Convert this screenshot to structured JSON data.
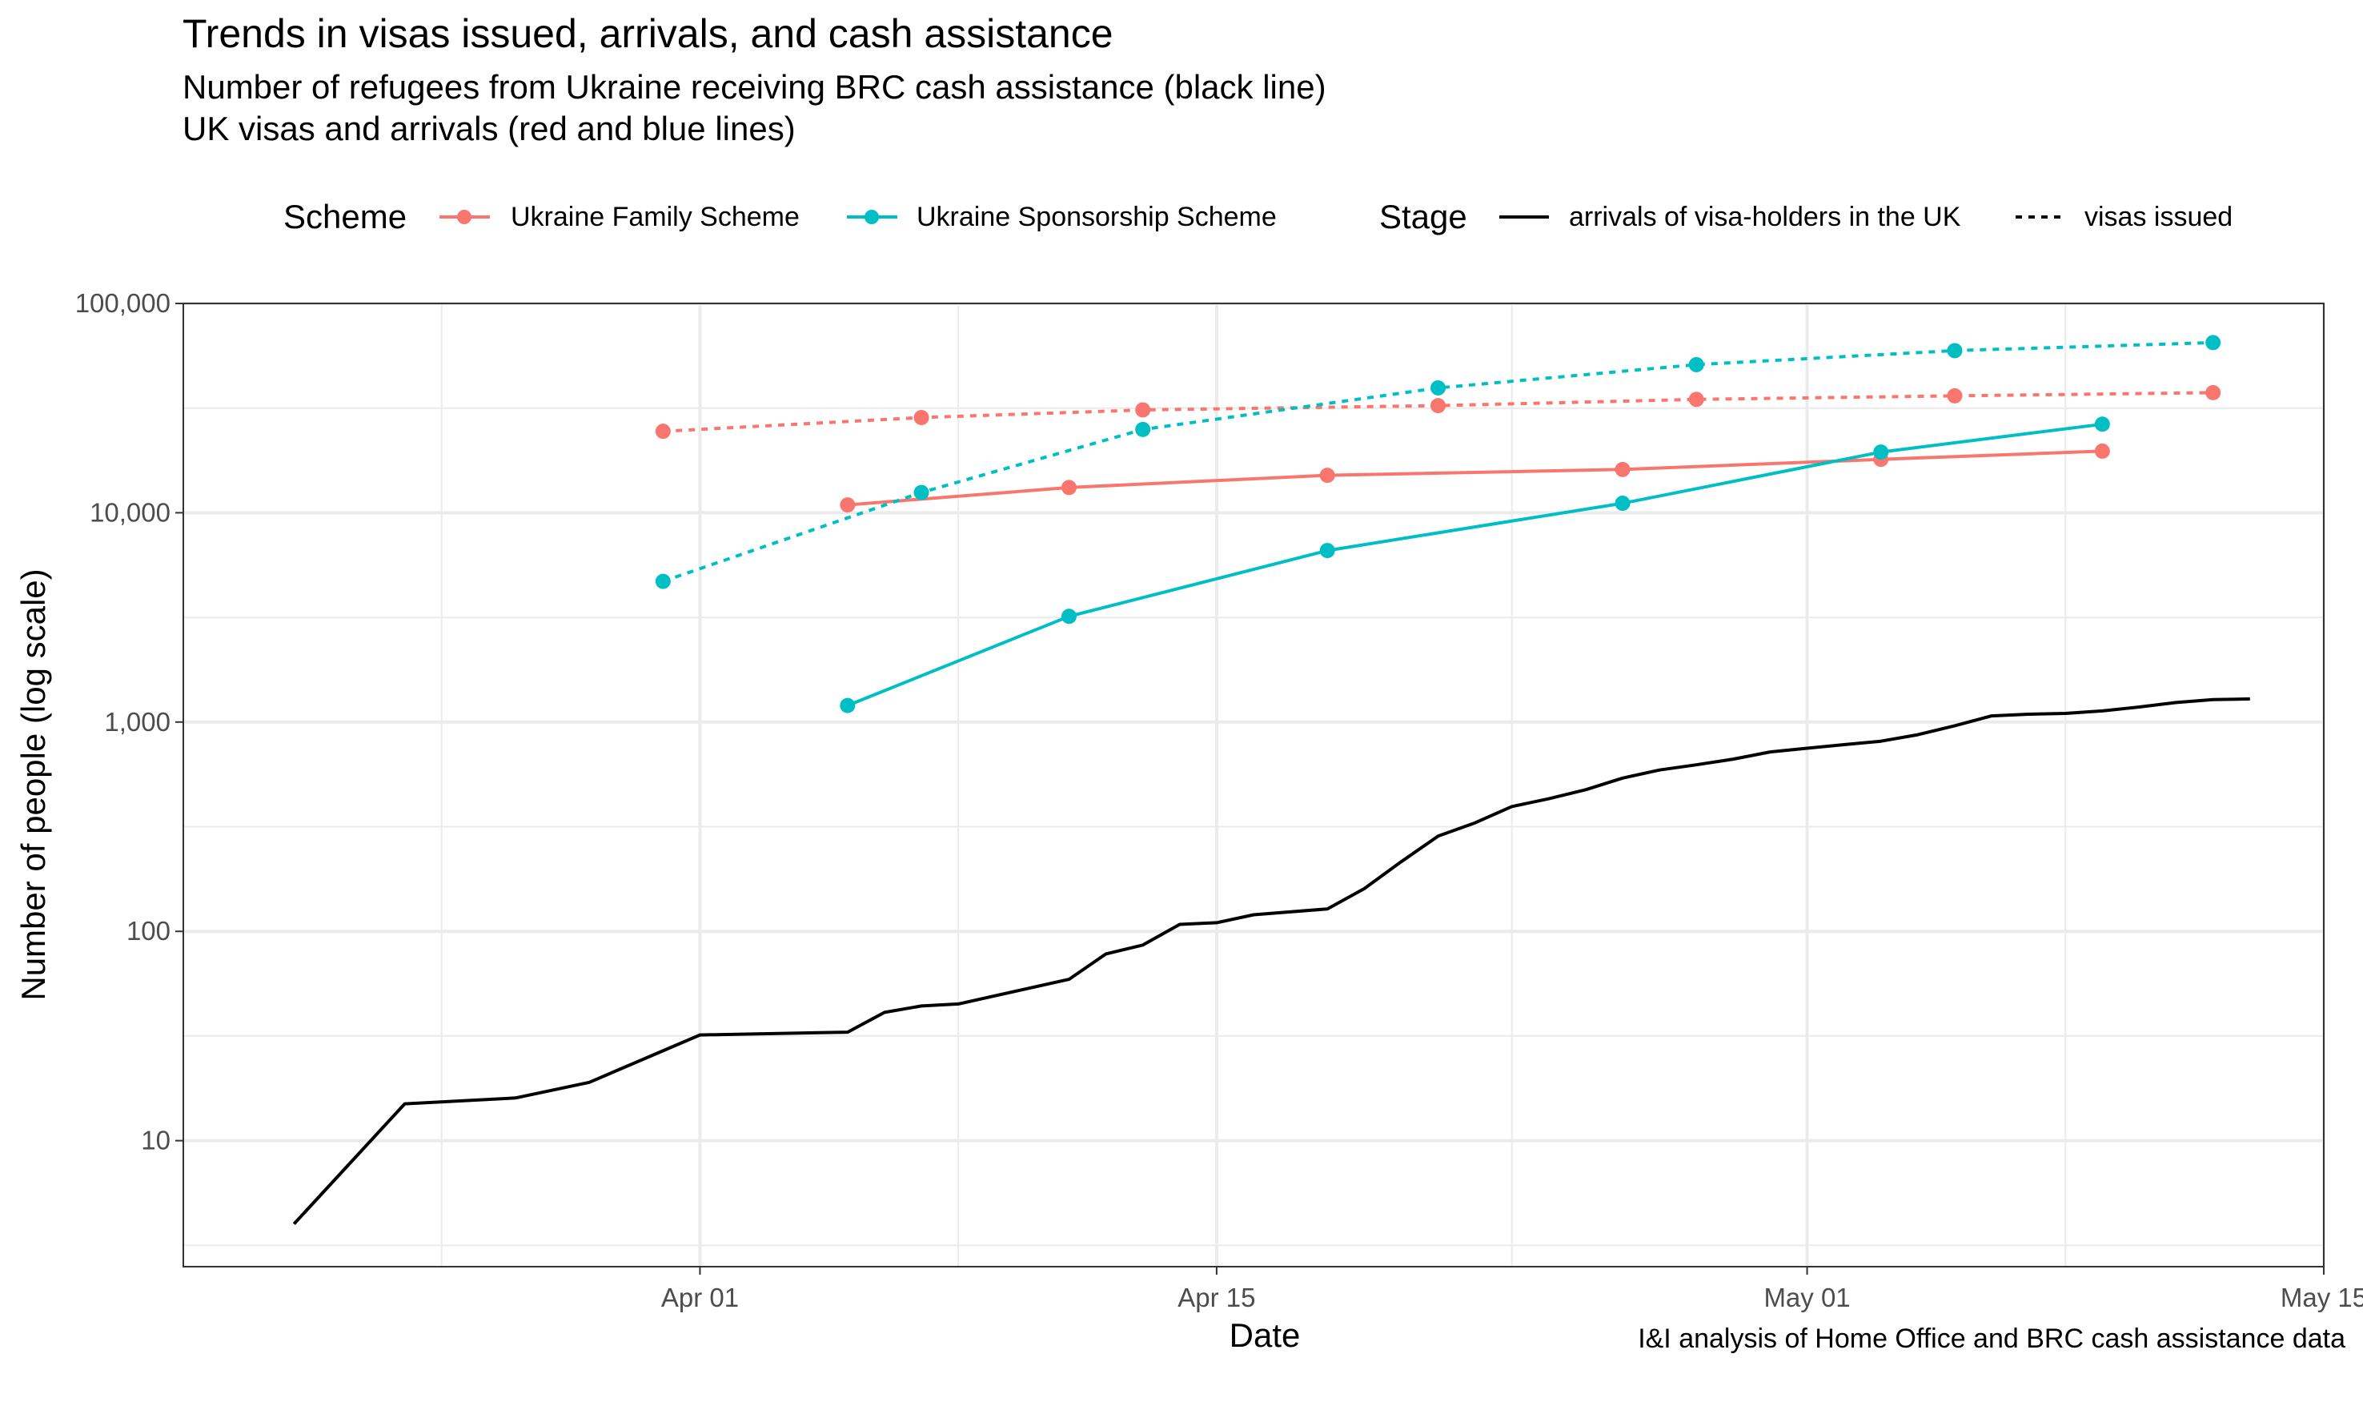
{
  "chart_data": {
    "type": "line",
    "title": "Trends in visas issued, arrivals, and cash assistance",
    "subtitle": [
      "Number of refugees from Ukraine receiving BRC cash assistance (black line)",
      "UK visas and arrivals (red and blue lines)"
    ],
    "caption": "I&I analysis of Home Office and BRC cash assistance data",
    "xlabel": "Date",
    "ylabel": "Number of people (log scale)",
    "y_scale": "log",
    "ylim": [
      2.5,
      100000
    ],
    "xlim": [
      "2022-03-18",
      "2022-05-15"
    ],
    "x_ticks": [
      {
        "date": "2022-04-01",
        "label": "Apr 01"
      },
      {
        "date": "2022-04-15",
        "label": "Apr 15"
      },
      {
        "date": "2022-05-01",
        "label": "May 01"
      },
      {
        "date": "2022-05-15",
        "label": "May 15"
      }
    ],
    "y_ticks": [
      {
        "value": 10,
        "label": "10"
      },
      {
        "value": 100,
        "label": "100"
      },
      {
        "value": 1000,
        "label": "1,000"
      },
      {
        "value": 10000,
        "label": "10,000"
      },
      {
        "value": 100000,
        "label": "100,000"
      }
    ],
    "grid": true,
    "legend": {
      "position": "top",
      "scheme_title": "Scheme",
      "stage_title": "Stage",
      "scheme_items": [
        {
          "label": "Ukraine Family Scheme",
          "color": "#F8766D"
        },
        {
          "label": "Ukraine Sponsorship Scheme",
          "color": "#00BFC4"
        }
      ],
      "stage_items": [
        {
          "label": "arrivals of visa-holders in the UK",
          "dash": "solid"
        },
        {
          "label": "visas issued",
          "dash": "dotted"
        }
      ]
    },
    "series": [
      {
        "scheme": "Ukraine Family Scheme",
        "stage": "visas issued",
        "color": "#F8766D",
        "dash": "dotted",
        "points": true,
        "x": [
          "2022-03-31",
          "2022-04-07",
          "2022-04-13",
          "2022-04-21",
          "2022-04-28",
          "2022-05-05",
          "2022-05-12"
        ],
        "y": [
          24500,
          28500,
          31000,
          32500,
          34800,
          36200,
          37500
        ]
      },
      {
        "scheme": "Ukraine Family Scheme",
        "stage": "arrivals of visa-holders in the UK",
        "color": "#F8766D",
        "dash": "solid",
        "points": true,
        "x": [
          "2022-04-05",
          "2022-04-11",
          "2022-04-18",
          "2022-04-26",
          "2022-05-03",
          "2022-05-09"
        ],
        "y": [
          10900,
          13200,
          15100,
          16100,
          18000,
          19700
        ]
      },
      {
        "scheme": "Ukraine Sponsorship Scheme",
        "stage": "visas issued",
        "color": "#00BFC4",
        "dash": "dotted",
        "points": true,
        "x": [
          "2022-03-31",
          "2022-04-07",
          "2022-04-13",
          "2022-04-21",
          "2022-04-28",
          "2022-05-05",
          "2022-05-12"
        ],
        "y": [
          4700,
          12500,
          25000,
          39500,
          51000,
          59500,
          65000
        ]
      },
      {
        "scheme": "Ukraine Sponsorship Scheme",
        "stage": "arrivals of visa-holders in the UK",
        "color": "#00BFC4",
        "dash": "solid",
        "points": true,
        "x": [
          "2022-04-05",
          "2022-04-11",
          "2022-04-18",
          "2022-04-26",
          "2022-05-03",
          "2022-05-09"
        ],
        "y": [
          1200,
          3200,
          6600,
          11100,
          19500,
          26500
        ]
      },
      {
        "scheme": "",
        "stage": "BRC cash assistance",
        "color": "#000000",
        "dash": "solid",
        "points": false,
        "x": [
          "2022-03-21",
          "2022-03-24",
          "2022-03-27",
          "2022-03-29",
          "2022-04-01",
          "2022-04-05",
          "2022-04-06",
          "2022-04-07",
          "2022-04-08",
          "2022-04-11",
          "2022-04-12",
          "2022-04-13",
          "2022-04-14",
          "2022-04-15",
          "2022-04-16",
          "2022-04-18",
          "2022-04-19",
          "2022-04-20",
          "2022-04-21",
          "2022-04-22",
          "2022-04-23",
          "2022-04-24",
          "2022-04-25",
          "2022-04-26",
          "2022-04-27",
          "2022-04-28",
          "2022-04-29",
          "2022-04-30",
          "2022-05-01",
          "2022-05-02",
          "2022-05-03",
          "2022-05-04",
          "2022-05-05",
          "2022-05-06",
          "2022-05-07",
          "2022-05-08",
          "2022-05-09",
          "2022-05-10",
          "2022-05-11",
          "2022-05-12",
          "2022-05-13"
        ],
        "y": [
          4,
          15,
          16,
          19,
          32,
          33,
          41,
          44,
          45,
          59,
          78,
          86,
          108,
          110,
          120,
          128,
          160,
          215,
          285,
          330,
          395,
          430,
          475,
          540,
          590,
          625,
          665,
          720,
          750,
          780,
          810,
          870,
          960,
          1070,
          1090,
          1100,
          1130,
          1180,
          1240,
          1280,
          1290
        ]
      }
    ]
  }
}
